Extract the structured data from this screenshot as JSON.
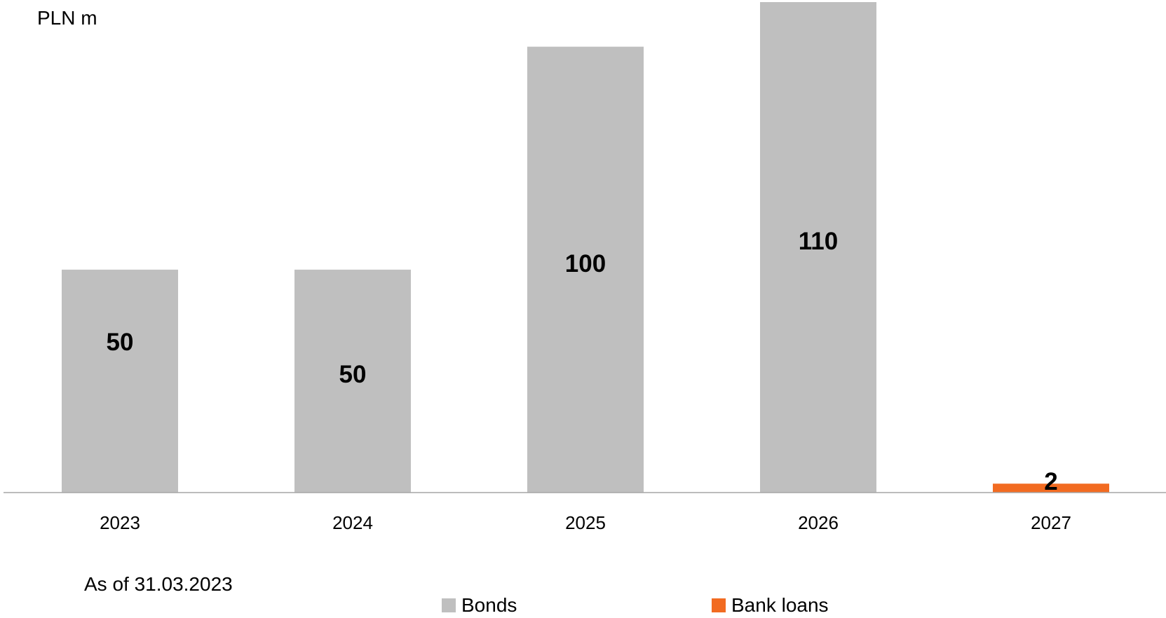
{
  "unit_label": "PLN m",
  "note": "As of 31.03.2023",
  "colors": {
    "bonds": "#bfbfbf",
    "bank_loans": "#f26b21",
    "axis": "#a6a6a6"
  },
  "chart_data": {
    "type": "bar",
    "categories": [
      "2023",
      "2024",
      "2025",
      "2026",
      "2027"
    ],
    "series": [
      {
        "name": "Bonds",
        "values": [
          50,
          50,
          100,
          110,
          0
        ]
      },
      {
        "name": "Bank loans",
        "values": [
          0,
          0,
          0,
          0,
          2
        ]
      }
    ],
    "data_labels": [
      "50",
      "50",
      "100",
      "110",
      "2"
    ],
    "ylim": [
      0,
      110
    ],
    "grid": false,
    "legend": "bottom"
  },
  "legend": [
    {
      "label": "Bonds",
      "color": "#bfbfbf"
    },
    {
      "label": "Bank loans",
      "color": "#f26b21"
    }
  ]
}
